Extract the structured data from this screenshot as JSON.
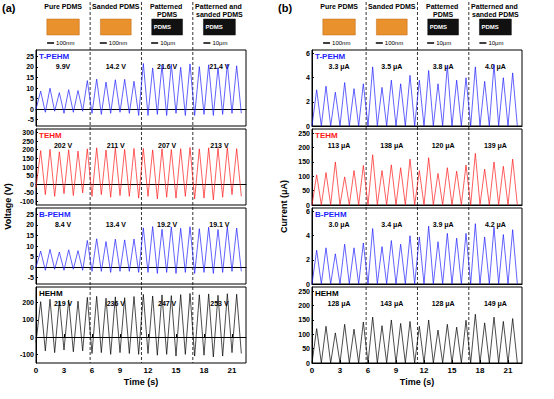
{
  "figure": {
    "columns": [
      "Pure PDMS",
      "Sanded PDMS",
      "Patterned PDMS",
      "Patterned and sanded PDMS"
    ],
    "thumbnails": [
      {
        "scale_bar": "100nm"
      },
      {
        "scale_bar": "100nm"
      },
      {
        "scale_bar": "10μm",
        "label": "PDMS"
      },
      {
        "scale_bar": "10μm",
        "label": "PDMS"
      }
    ]
  },
  "chart_data": [
    {
      "type": "line",
      "panel": "(a)",
      "y_title": "Voltage (V)",
      "x_title": "Time (s)",
      "xlim": [
        0,
        22.5
      ],
      "xticks": [
        0,
        3,
        6,
        9,
        12,
        15,
        18,
        21
      ],
      "dividers": [
        5.8,
        11.3,
        16.8
      ],
      "x": [
        0,
        0.5,
        1,
        1.5,
        2,
        2.5,
        3,
        3.5,
        4,
        4.5,
        5,
        5.5,
        6,
        6.5,
        7,
        7.5,
        8,
        8.5,
        9,
        9.5,
        10,
        10.5,
        11,
        11.5,
        12,
        12.5,
        13,
        13.5,
        14,
        14.5,
        15,
        15.5,
        16,
        16.5,
        17,
        17.5,
        18,
        18.5,
        19,
        19.5,
        20,
        20.5,
        21,
        21.5,
        22
      ],
      "series": [
        {
          "name": "T-PEHM",
          "color": "#1f1fff",
          "ylim": [
            -8,
            28
          ],
          "yticks": [
            -5,
            0,
            5,
            10,
            15,
            20,
            25
          ],
          "annotations": [
            "9.9V",
            "14.2 V",
            "21.6 V",
            "21.4 V"
          ],
          "values": [
            0,
            8.5,
            -1.5,
            9.9,
            -1,
            7.8,
            -2,
            9.2,
            -1.5,
            8.8,
            -1,
            13.5,
            -2,
            14.2,
            -2.5,
            12.8,
            -2,
            13.9,
            -1.5,
            14.1,
            -2,
            13.2,
            -3,
            21.6,
            -3,
            19.5,
            -2.5,
            20.8,
            -3,
            21.2,
            -2,
            19.8,
            -3,
            21.4,
            -3,
            20.1,
            -2.5,
            21.0,
            -3,
            19.6,
            -2.5,
            21.3,
            -2,
            20.5,
            -2
          ]
        },
        {
          "name": "TEHM",
          "color": "#ff1a1a",
          "ylim": [
            -120,
            320
          ],
          "yticks": [
            -100,
            -50,
            0,
            50,
            100,
            150,
            200,
            250,
            300
          ],
          "annotations": [
            "202 V",
            "211 V",
            "207 V",
            "213 V"
          ],
          "values": [
            -20,
            195,
            -60,
            202,
            -70,
            188,
            -55,
            200,
            -65,
            192,
            -50,
            205,
            -70,
            211,
            -60,
            198,
            -75,
            209,
            -65,
            202,
            -70,
            207,
            -80,
            207,
            -70,
            199,
            -85,
            205,
            -75,
            201,
            -80,
            206,
            -70,
            213,
            -85,
            205,
            -80,
            211,
            -90,
            208,
            -75,
            212,
            -60,
            206,
            -70
          ]
        },
        {
          "name": "B-PEHM",
          "color": "#1f1fff",
          "ylim": [
            -8,
            28
          ],
          "yticks": [
            -5,
            0,
            5,
            10,
            15,
            20,
            25
          ],
          "annotations": [
            "8.4 V",
            "13.4 V",
            "19.2 V",
            "19.1 V"
          ],
          "values": [
            0,
            7.6,
            -1.5,
            8.4,
            -1,
            7.1,
            -1.5,
            8.2,
            -1,
            7.8,
            -1.5,
            12.6,
            -2,
            13.4,
            -2,
            12.1,
            -2.5,
            13.2,
            -2,
            12.9,
            -2,
            13.3,
            -2.5,
            18.6,
            -2.5,
            19.2,
            -3,
            17.9,
            -2.5,
            19.0,
            -3,
            18.4,
            -2.5,
            19.1,
            -3,
            18.2,
            -2.5,
            18.9,
            -3,
            17.8,
            -2.5,
            19.0,
            -2,
            18.5,
            -2
          ]
        },
        {
          "name": "HEHM",
          "color": "#000000",
          "ylim": [
            -150,
            290
          ],
          "yticks": [
            -100,
            0,
            100,
            200
          ],
          "annotations": [
            "219 V",
            "236 V",
            "247 V",
            "253 V"
          ],
          "values": [
            -30,
            205,
            -80,
            219,
            -90,
            210,
            -75,
            215,
            -85,
            208,
            -80,
            230,
            -95,
            236,
            -90,
            225,
            -100,
            233,
            -90,
            228,
            -95,
            235,
            -100,
            247,
            -95,
            238,
            -105,
            244,
            -100,
            240,
            -110,
            246,
            -100,
            253,
            -110,
            245,
            -105,
            250,
            -115,
            242,
            -110,
            251,
            -90,
            248,
            -95
          ]
        }
      ]
    },
    {
      "type": "line",
      "panel": "(b)",
      "y_title": "Current (μA)",
      "x_title": "Time (s)",
      "xlim": [
        0,
        22.5
      ],
      "xticks": [
        0,
        3,
        6,
        9,
        12,
        15,
        18,
        21
      ],
      "dividers": [
        5.8,
        11.3,
        16.8
      ],
      "x": [
        0,
        0.5,
        1,
        1.5,
        2,
        2.5,
        3,
        3.5,
        4,
        4.5,
        5,
        5.5,
        6,
        6.5,
        7,
        7.5,
        8,
        8.5,
        9,
        9.5,
        10,
        10.5,
        11,
        11.5,
        12,
        12.5,
        13,
        13.5,
        14,
        14.5,
        15,
        15.5,
        16,
        16.5,
        17,
        17.5,
        18,
        18.5,
        19,
        19.5,
        20,
        20.5,
        21,
        21.5,
        22
      ],
      "series": [
        {
          "name": "T-PEHM",
          "color": "#1f1fff",
          "ylim": [
            0,
            6.3
          ],
          "yticks": [
            0,
            2,
            4,
            6
          ],
          "annotations": [
            "3.3 μA",
            "3.5 μA",
            "3.8 μA",
            "4.0 μA"
          ],
          "values": [
            0,
            3.0,
            0,
            3.3,
            0,
            2.8,
            0,
            3.6,
            0,
            3.1,
            0,
            3.5,
            0,
            4.9,
            0,
            3.2,
            0,
            3.8,
            0,
            3.5,
            0,
            4.2,
            0,
            3.8,
            0,
            4.6,
            0,
            3.5,
            0,
            5.0,
            0,
            3.8,
            0,
            4.0,
            0,
            4.9,
            0,
            3.7,
            0,
            5.1,
            0,
            4.0,
            0,
            4.4,
            0
          ]
        },
        {
          "name": "TEHM",
          "color": "#ff1a1a",
          "ylim": [
            0,
            265
          ],
          "yticks": [
            0,
            50,
            100,
            150,
            200,
            250
          ],
          "annotations": [
            "113 μA",
            "138 μA",
            "120 μA",
            "139 μA"
          ],
          "values": [
            0,
            105,
            0,
            113,
            0,
            150,
            0,
            98,
            0,
            120,
            0,
            138,
            0,
            175,
            0,
            120,
            0,
            140,
            0,
            130,
            0,
            160,
            0,
            120,
            0,
            165,
            0,
            110,
            0,
            130,
            0,
            118,
            0,
            139,
            0,
            180,
            0,
            125,
            0,
            150,
            0,
            135,
            0,
            160,
            0
          ]
        },
        {
          "name": "B-PEHM",
          "color": "#1f1fff",
          "ylim": [
            0,
            6.3
          ],
          "yticks": [
            0,
            2,
            4,
            6
          ],
          "annotations": [
            "3.0 μA",
            "3.4 μA",
            "3.9 μA",
            "4.2 μA"
          ],
          "values": [
            0,
            2.8,
            0,
            3.0,
            0,
            2.5,
            0,
            3.3,
            0,
            3.0,
            0,
            3.4,
            0,
            4.6,
            0,
            3.1,
            0,
            3.6,
            0,
            3.3,
            0,
            4.0,
            0,
            3.9,
            0,
            4.8,
            0,
            3.5,
            0,
            4.2,
            0,
            3.8,
            0,
            4.2,
            0,
            5.0,
            0,
            3.9,
            0,
            4.7,
            0,
            4.1,
            0,
            4.5,
            0
          ]
        },
        {
          "name": "HEHM",
          "color": "#000000",
          "ylim": [
            0,
            265
          ],
          "yticks": [
            0,
            50,
            100,
            150,
            200,
            250
          ],
          "annotations": [
            "128 μA",
            "143 μA",
            "128 μA",
            "149 μA"
          ],
          "values": [
            0,
            120,
            0,
            128,
            0,
            105,
            0,
            135,
            0,
            118,
            0,
            143,
            0,
            160,
            0,
            130,
            0,
            150,
            0,
            138,
            0,
            145,
            0,
            128,
            0,
            150,
            0,
            115,
            0,
            135,
            0,
            125,
            0,
            149,
            0,
            170,
            0,
            140,
            0,
            160,
            0,
            145,
            0,
            155,
            0
          ]
        }
      ]
    }
  ]
}
